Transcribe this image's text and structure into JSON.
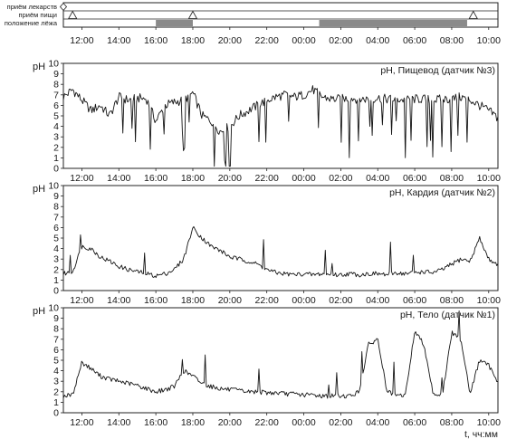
{
  "events": {
    "rows": [
      {
        "label": "приём лекарств",
        "diamonds": [
          "11:00"
        ],
        "triangles": [],
        "bars": []
      },
      {
        "label": "приём пищи",
        "diamonds": [],
        "triangles": [
          "11:30",
          "18:00",
          "09:10"
        ],
        "bars": []
      },
      {
        "label": "положение лёжа",
        "diamonds": [],
        "triangles": [],
        "bars": [
          [
            "16:00",
            "18:00"
          ],
          [
            "00:50",
            "08:50"
          ]
        ]
      }
    ],
    "ticks": [
      "12:00",
      "14:00",
      "16:00",
      "18:00",
      "20:00",
      "22:00",
      "00:00",
      "02:00",
      "04:00",
      "06:00",
      "08:00",
      "10:00"
    ]
  },
  "chart_data": [
    {
      "type": "line",
      "title": "pH, Пищевод (датчик №3)",
      "ylabel": "pH",
      "xlabel": "",
      "ylim": [
        0,
        10
      ],
      "yticks": [
        "0",
        "1",
        "2",
        "3",
        "4",
        "5",
        "6",
        "7",
        "8",
        "9",
        "10"
      ],
      "xticks": [
        "12:00",
        "14:00",
        "16:00",
        "18:00",
        "20:00",
        "22:00",
        "00:00",
        "02:00",
        "04:00",
        "06:00",
        "08:00",
        "10:00"
      ],
      "xrange": [
        "11:00",
        "10:30"
      ],
      "series": [
        {
          "x": [
            "11:00",
            "11:30",
            "12:00",
            "12:30",
            "13:00",
            "13:30",
            "14:00",
            "14:30",
            "15:00",
            "15:30",
            "16:00",
            "16:30",
            "17:00",
            "17:30",
            "18:00",
            "18:30",
            "19:00",
            "19:30",
            "20:00",
            "20:30",
            "21:00",
            "21:30",
            "22:00",
            "22:30",
            "23:00",
            "23:30",
            "00:00",
            "00:30",
            "01:00",
            "01:30",
            "02:00",
            "02:30",
            "03:00",
            "03:30",
            "04:00",
            "04:30",
            "05:00",
            "05:30",
            "06:00",
            "06:30",
            "07:00",
            "07:30",
            "08:00",
            "08:30",
            "09:00",
            "09:30",
            "10:00",
            "10:30"
          ],
          "values": [
            6.8,
            7.5,
            6.5,
            5.5,
            6.0,
            5.0,
            6.8,
            6.5,
            6.7,
            6.6,
            4.5,
            6.0,
            6.3,
            6.5,
            7.2,
            5.0,
            4.5,
            3.5,
            4.0,
            5.0,
            5.5,
            6.0,
            6.5,
            6.8,
            7.0,
            6.8,
            7.0,
            7.5,
            6.8,
            6.6,
            6.6,
            6.7,
            6.6,
            6.6,
            6.7,
            6.6,
            6.6,
            6.5,
            6.6,
            6.6,
            6.5,
            6.6,
            6.6,
            6.8,
            6.5,
            6.0,
            5.5,
            4.8
          ]
        }
      ]
    },
    {
      "type": "line",
      "title": "pH, Кардия (датчик №2)",
      "ylabel": "pH",
      "xlabel": "",
      "ylim": [
        0,
        10
      ],
      "yticks": [
        "0",
        "1",
        "2",
        "3",
        "4",
        "5",
        "6",
        "7",
        "8",
        "9",
        "10"
      ],
      "xticks": [
        "12:00",
        "14:00",
        "16:00",
        "18:00",
        "20:00",
        "22:00",
        "00:00",
        "02:00",
        "04:00",
        "06:00",
        "08:00",
        "10:00"
      ],
      "xrange": [
        "11:00",
        "10:30"
      ],
      "series": [
        {
          "x": [
            "11:00",
            "11:30",
            "12:00",
            "12:30",
            "13:00",
            "13:30",
            "14:00",
            "14:30",
            "15:00",
            "15:30",
            "16:00",
            "16:30",
            "17:00",
            "17:30",
            "18:00",
            "18:30",
            "19:00",
            "19:30",
            "20:00",
            "20:30",
            "21:00",
            "21:30",
            "22:00",
            "22:30",
            "23:00",
            "23:30",
            "00:00",
            "00:30",
            "01:00",
            "01:30",
            "02:00",
            "02:30",
            "03:00",
            "03:30",
            "04:00",
            "04:30",
            "05:00",
            "05:30",
            "06:00",
            "06:30",
            "07:00",
            "07:30",
            "08:00",
            "08:30",
            "09:00",
            "09:30",
            "10:00",
            "10:30"
          ],
          "values": [
            1.6,
            1.8,
            4.2,
            4.0,
            3.2,
            2.8,
            2.3,
            2.0,
            1.8,
            1.6,
            1.4,
            1.6,
            2.0,
            3.0,
            6.0,
            5.0,
            4.2,
            3.8,
            3.2,
            3.0,
            2.8,
            2.5,
            2.0,
            1.7,
            1.6,
            1.5,
            1.6,
            1.5,
            1.6,
            1.5,
            1.5,
            1.6,
            1.5,
            1.6,
            1.6,
            1.5,
            1.7,
            1.6,
            1.7,
            1.8,
            1.7,
            2.0,
            2.5,
            3.0,
            2.8,
            5.0,
            3.0,
            2.5
          ]
        }
      ]
    },
    {
      "type": "line",
      "title": "pH, Тело (датчик №1)",
      "ylabel": "pH",
      "xlabel": "t, чч:мм",
      "ylim": [
        0,
        10
      ],
      "yticks": [
        "0",
        "1",
        "2",
        "3",
        "4",
        "5",
        "6",
        "7",
        "8",
        "9",
        "10"
      ],
      "xticks": [
        "12:00",
        "14:00",
        "16:00",
        "18:00",
        "20:00",
        "22:00",
        "00:00",
        "02:00",
        "04:00",
        "06:00",
        "08:00",
        "10:00"
      ],
      "xrange": [
        "11:00",
        "10:30"
      ],
      "series": [
        {
          "x": [
            "11:00",
            "11:30",
            "12:00",
            "12:30",
            "13:00",
            "13:30",
            "14:00",
            "14:30",
            "15:00",
            "15:30",
            "16:00",
            "16:30",
            "17:00",
            "17:30",
            "18:00",
            "18:30",
            "19:00",
            "19:30",
            "20:00",
            "20:30",
            "21:00",
            "21:30",
            "22:00",
            "22:30",
            "23:00",
            "23:30",
            "00:00",
            "00:30",
            "01:00",
            "01:30",
            "02:00",
            "02:30",
            "03:00",
            "03:30",
            "04:00",
            "04:30",
            "05:00",
            "05:30",
            "06:00",
            "06:30",
            "07:00",
            "07:30",
            "08:00",
            "08:30",
            "09:00",
            "09:30",
            "10:00",
            "10:30"
          ],
          "values": [
            1.6,
            1.7,
            4.8,
            4.2,
            3.5,
            3.2,
            3.0,
            2.8,
            2.6,
            2.3,
            2.0,
            2.2,
            2.5,
            4.0,
            3.5,
            2.8,
            2.5,
            2.3,
            2.2,
            2.1,
            2.0,
            2.0,
            1.9,
            1.9,
            1.8,
            1.8,
            1.7,
            1.7,
            1.6,
            1.6,
            1.6,
            1.6,
            2.0,
            6.5,
            7.0,
            2.0,
            1.6,
            1.7,
            7.8,
            6.5,
            1.8,
            1.7,
            7.6,
            7.0,
            1.8,
            5.0,
            4.5,
            3.0
          ]
        }
      ]
    }
  ]
}
